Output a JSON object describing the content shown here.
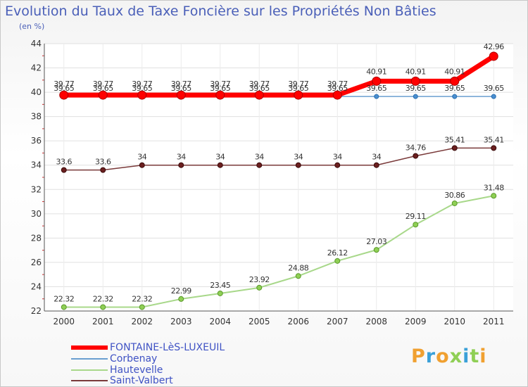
{
  "chart_data": {
    "type": "line",
    "title": "Evolution du Taux de Taxe Foncière sur les Propriétés Non Bâties",
    "ylabel": "(en %)",
    "xlabel": "",
    "categories": [
      "2000",
      "2001",
      "2002",
      "2003",
      "2004",
      "2005",
      "2006",
      "2007",
      "2008",
      "2009",
      "2010",
      "2011"
    ],
    "ylim": [
      22,
      44
    ],
    "yticks": [
      "22",
      "24",
      "26",
      "28",
      "30",
      "32",
      "34",
      "36",
      "38",
      "40",
      "42",
      "44"
    ],
    "grid": true,
    "series": [
      {
        "name": "FONTAINE-LèS-LUXEUIL",
        "color": "#ff0000",
        "values": [
          39.77,
          39.77,
          39.77,
          39.77,
          39.77,
          39.77,
          39.77,
          39.77,
          40.91,
          40.91,
          40.91,
          42.96
        ],
        "labels": [
          "39.77",
          "39.77",
          "39.77",
          "39.77",
          "39.77",
          "39.77",
          "39.77",
          "39.77",
          "40.91",
          "40.91",
          "40.91",
          "42.96"
        ]
      },
      {
        "name": "Corbenay",
        "color": "#6a9fd0",
        "values": [
          39.65,
          39.65,
          39.65,
          39.65,
          39.65,
          39.65,
          39.65,
          39.65,
          39.65,
          39.65,
          39.65,
          39.65
        ],
        "labels": [
          "39.65",
          "39.65",
          "39.65",
          "39.65",
          "39.65",
          "39.65",
          "39.65",
          "39.65",
          "39.65",
          "39.65",
          "39.65",
          "39.65"
        ]
      },
      {
        "name": "Hautevelle",
        "color": "#a8d88a",
        "values": [
          22.32,
          22.32,
          22.32,
          22.99,
          23.45,
          23.92,
          24.88,
          26.12,
          27.03,
          29.11,
          30.86,
          31.48
        ],
        "labels": [
          "22.32",
          "22.32",
          "22.32",
          "22.99",
          "23.45",
          "23.92",
          "24.88",
          "26.12",
          "27.03",
          "29.11",
          "30.86",
          "31.48"
        ]
      },
      {
        "name": "Saint-Valbert",
        "color": "#7a3a3a",
        "values": [
          33.6,
          33.6,
          34,
          34,
          34,
          34,
          34,
          34,
          34,
          34.76,
          35.41,
          35.41
        ],
        "labels": [
          "33.6",
          "33.6",
          "34",
          "34",
          "34",
          "34",
          "34",
          "34",
          "34",
          "34.76",
          "35.41",
          "35.41"
        ]
      }
    ]
  },
  "logo": {
    "text": "Proxiti"
  }
}
